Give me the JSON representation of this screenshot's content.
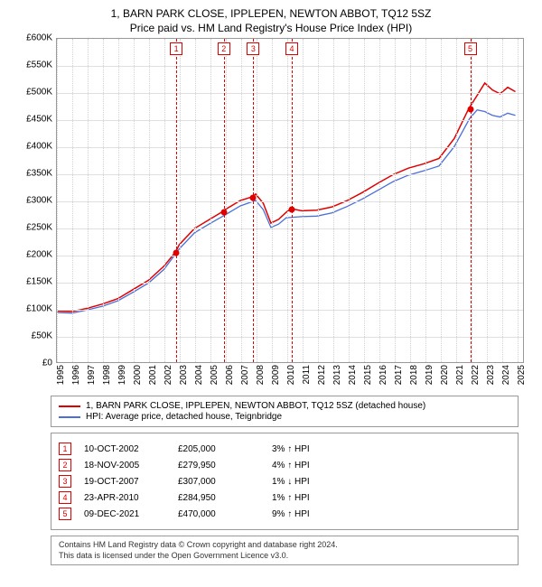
{
  "title": "1, BARN PARK CLOSE, IPPLEPEN, NEWTON ABBOT, TQ12 5SZ",
  "subtitle": "Price paid vs. HM Land Registry's House Price Index (HPI)",
  "chart": {
    "type": "line",
    "xlim": [
      1995,
      2025.5
    ],
    "ylim": [
      0,
      600000
    ],
    "y_ticks": [
      0,
      50000,
      100000,
      150000,
      200000,
      250000,
      300000,
      350000,
      400000,
      450000,
      500000,
      550000,
      600000
    ],
    "y_tick_labels": [
      "£0",
      "£50K",
      "£100K",
      "£150K",
      "£200K",
      "£250K",
      "£300K",
      "£350K",
      "£400K",
      "£450K",
      "£500K",
      "£550K",
      "£600K"
    ],
    "x_ticks": [
      1995,
      1996,
      1997,
      1998,
      1999,
      2000,
      2001,
      2002,
      2003,
      2004,
      2005,
      2006,
      2007,
      2008,
      2009,
      2010,
      2011,
      2012,
      2013,
      2014,
      2015,
      2016,
      2017,
      2018,
      2019,
      2020,
      2021,
      2022,
      2023,
      2024,
      2025
    ],
    "x_tick_labels": [
      "1995",
      "1996",
      "1997",
      "1998",
      "1999",
      "2000",
      "2001",
      "2002",
      "2003",
      "2004",
      "2005",
      "2006",
      "2007",
      "2008",
      "2009",
      "2010",
      "2011",
      "2012",
      "2013",
      "2014",
      "2015",
      "2016",
      "2017",
      "2018",
      "2019",
      "2020",
      "2021",
      "2022",
      "2023",
      "2024",
      "2025"
    ],
    "grid_color": "#e0e0e0",
    "background_color": "#ffffff",
    "series": [
      {
        "name": "property",
        "label": "1, BARN PARK CLOSE, IPPLEPEN, NEWTON ABBOT, TQ12 5SZ (detached house)",
        "color": "#e00000",
        "line_width": 1.5,
        "points": [
          [
            1995,
            95000
          ],
          [
            1996,
            94000
          ],
          [
            1997,
            100000
          ],
          [
            1998,
            108000
          ],
          [
            1999,
            118000
          ],
          [
            2000,
            135000
          ],
          [
            2001,
            152000
          ],
          [
            2002,
            178000
          ],
          [
            2002.78,
            205000
          ],
          [
            2003,
            218000
          ],
          [
            2004,
            248000
          ],
          [
            2005,
            265000
          ],
          [
            2005.88,
            279950
          ],
          [
            2006,
            283000
          ],
          [
            2007,
            300000
          ],
          [
            2007.8,
            307000
          ],
          [
            2008,
            312000
          ],
          [
            2008.5,
            295000
          ],
          [
            2009,
            258000
          ],
          [
            2009.5,
            265000
          ],
          [
            2010,
            278000
          ],
          [
            2010.31,
            284950
          ],
          [
            2011,
            281000
          ],
          [
            2012,
            282000
          ],
          [
            2013,
            288000
          ],
          [
            2014,
            300000
          ],
          [
            2015,
            315000
          ],
          [
            2016,
            332000
          ],
          [
            2017,
            348000
          ],
          [
            2018,
            360000
          ],
          [
            2019,
            368000
          ],
          [
            2020,
            378000
          ],
          [
            2021,
            415000
          ],
          [
            2021.94,
            470000
          ],
          [
            2022.5,
            495000
          ],
          [
            2023,
            518000
          ],
          [
            2023.5,
            505000
          ],
          [
            2024,
            498000
          ],
          [
            2024.5,
            510000
          ],
          [
            2025,
            502000
          ]
        ]
      },
      {
        "name": "hpi",
        "label": "HPI: Average price, detached house, Teignbridge",
        "color": "#4a6fd8",
        "line_width": 1.3,
        "points": [
          [
            1995,
            92000
          ],
          [
            1996,
            91000
          ],
          [
            1997,
            97000
          ],
          [
            1998,
            104000
          ],
          [
            1999,
            114000
          ],
          [
            2000,
            130000
          ],
          [
            2001,
            147000
          ],
          [
            2002,
            172000
          ],
          [
            2003,
            210000
          ],
          [
            2004,
            240000
          ],
          [
            2005,
            257000
          ],
          [
            2006,
            273000
          ],
          [
            2007,
            290000
          ],
          [
            2008,
            300000
          ],
          [
            2008.5,
            283000
          ],
          [
            2009,
            250000
          ],
          [
            2009.5,
            256000
          ],
          [
            2010,
            268000
          ],
          [
            2011,
            270000
          ],
          [
            2012,
            271000
          ],
          [
            2013,
            277000
          ],
          [
            2014,
            289000
          ],
          [
            2015,
            303000
          ],
          [
            2016,
            319000
          ],
          [
            2017,
            335000
          ],
          [
            2018,
            347000
          ],
          [
            2019,
            355000
          ],
          [
            2020,
            364000
          ],
          [
            2021,
            400000
          ],
          [
            2022,
            452000
          ],
          [
            2022.5,
            468000
          ],
          [
            2023,
            465000
          ],
          [
            2023.5,
            458000
          ],
          [
            2024,
            455000
          ],
          [
            2024.5,
            462000
          ],
          [
            2025,
            458000
          ]
        ]
      }
    ],
    "markers": [
      {
        "n": "1",
        "x": 2002.78,
        "y": 205000
      },
      {
        "n": "2",
        "x": 2005.88,
        "y": 279950
      },
      {
        "n": "3",
        "x": 2007.8,
        "y": 307000
      },
      {
        "n": "4",
        "x": 2010.31,
        "y": 284950
      },
      {
        "n": "5",
        "x": 2021.94,
        "y": 470000
      }
    ]
  },
  "legend": [
    {
      "color": "#e00000",
      "label": "1, BARN PARK CLOSE, IPPLEPEN, NEWTON ABBOT, TQ12 5SZ (detached house)"
    },
    {
      "color": "#4a6fd8",
      "label": "HPI: Average price, detached house, Teignbridge"
    }
  ],
  "transactions": [
    {
      "n": "1",
      "date": "10-OCT-2002",
      "price": "£205,000",
      "diff": "3%",
      "dir": "↑",
      "suffix": "HPI"
    },
    {
      "n": "2",
      "date": "18-NOV-2005",
      "price": "£279,950",
      "diff": "4%",
      "dir": "↑",
      "suffix": "HPI"
    },
    {
      "n": "3",
      "date": "19-OCT-2007",
      "price": "£307,000",
      "diff": "1%",
      "dir": "↓",
      "suffix": "HPI"
    },
    {
      "n": "4",
      "date": "23-APR-2010",
      "price": "£284,950",
      "diff": "1%",
      "dir": "↑",
      "suffix": "HPI"
    },
    {
      "n": "5",
      "date": "09-DEC-2021",
      "price": "£470,000",
      "diff": "9%",
      "dir": "↑",
      "suffix": "HPI"
    }
  ],
  "footer": {
    "line1": "Contains HM Land Registry data © Crown copyright and database right 2024.",
    "line2": "This data is licensed under the Open Government Licence v3.0."
  }
}
